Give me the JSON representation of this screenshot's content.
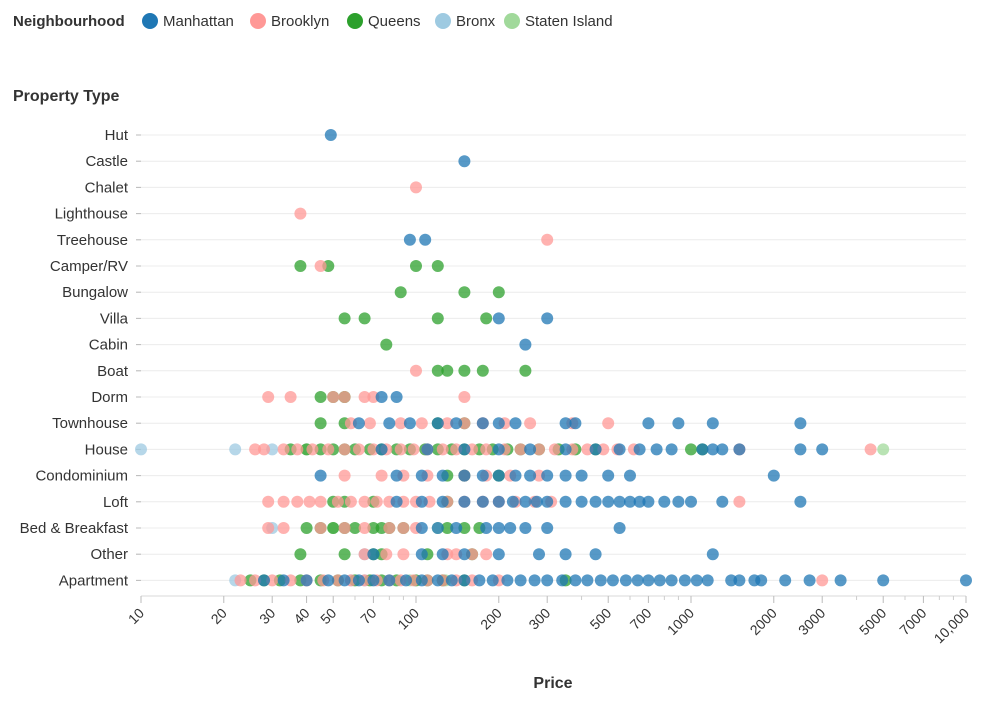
{
  "chart_data": {
    "type": "scatter",
    "x_scale": "log",
    "xlim": [
      10,
      10000
    ],
    "xlabel": "Price",
    "ylabel": "Property Type",
    "legend": {
      "title": "Neighbourhood",
      "placement": "top-left",
      "entries": [
        {
          "name": "Manhattan",
          "color": "#1f77b4"
        },
        {
          "name": "Brooklyn",
          "color": "#ff9896"
        },
        {
          "name": "Queens",
          "color": "#2ca02c"
        },
        {
          "name": "Bronx",
          "color": "#9ecae1"
        },
        {
          "name": "Staten Island",
          "color": "#a1d99b"
        }
      ]
    },
    "categories": [
      "Hut",
      "Castle",
      "Chalet",
      "Lighthouse",
      "Treehouse",
      "Camper/RV",
      "Bungalow",
      "Villa",
      "Cabin",
      "Boat",
      "Dorm",
      "Townhouse",
      "House",
      "Condominium",
      "Loft",
      "Bed & Breakfast",
      "Other",
      "Apartment"
    ],
    "x_ticks": [
      {
        "value": 10,
        "label": "10"
      },
      {
        "value": 20,
        "label": "20"
      },
      {
        "value": 30,
        "label": "30"
      },
      {
        "value": 40,
        "label": "40"
      },
      {
        "value": 50,
        "label": "50"
      },
      {
        "value": 70,
        "label": "70"
      },
      {
        "value": 100,
        "label": "100"
      },
      {
        "value": 200,
        "label": "200"
      },
      {
        "value": 300,
        "label": "300"
      },
      {
        "value": 500,
        "label": "500"
      },
      {
        "value": 700,
        "label": "700"
      },
      {
        "value": 1000,
        "label": "1000"
      },
      {
        "value": 2000,
        "label": "2000"
      },
      {
        "value": 3000,
        "label": "3000"
      },
      {
        "value": 5000,
        "label": "5000"
      },
      {
        "value": 7000,
        "label": "7000"
      },
      {
        "value": 10000,
        "label": "10,000"
      }
    ],
    "minor_ticks": [
      60,
      80,
      90,
      400,
      600,
      800,
      900,
      4000,
      6000,
      8000,
      9000
    ],
    "series": [
      {
        "name": "Manhattan",
        "points": {
          "Hut": [
            49
          ],
          "Castle": [
            150
          ],
          "Treehouse": [
            95,
            108
          ],
          "Villa": [
            200,
            300
          ],
          "Cabin": [
            250
          ],
          "Dorm": [
            75,
            85
          ],
          "Townhouse": [
            62,
            80,
            95,
            120,
            140,
            175,
            200,
            230,
            350,
            380,
            700,
            900,
            1200,
            2500
          ],
          "House": [
            75,
            110,
            150,
            200,
            260,
            350,
            450,
            550,
            650,
            750,
            850,
            1100,
            1200,
            1300,
            1500,
            2500,
            3000
          ],
          "Condominium": [
            45,
            85,
            105,
            125,
            150,
            175,
            200,
            230,
            260,
            300,
            350,
            400,
            500,
            600,
            2000
          ],
          "Loft": [
            85,
            105,
            125,
            150,
            175,
            200,
            225,
            250,
            275,
            300,
            350,
            400,
            450,
            500,
            550,
            600,
            650,
            700,
            800,
            900,
            1000,
            1300,
            2500
          ],
          "Bed & Breakfast": [
            105,
            120,
            140,
            180,
            200,
            220,
            250,
            300,
            550
          ],
          "Other": [
            70,
            105,
            125,
            150,
            200,
            280,
            350,
            450,
            1200
          ],
          "Apartment": [
            28,
            33,
            40,
            48,
            55,
            62,
            70,
            80,
            92,
            105,
            120,
            135,
            150,
            170,
            190,
            215,
            240,
            270,
            300,
            340,
            380,
            420,
            470,
            520,
            580,
            640,
            700,
            770,
            850,
            950,
            1050,
            1150,
            1400,
            1500,
            1700,
            1800,
            2200,
            2700,
            3500,
            5000,
            10000
          ]
        }
      },
      {
        "name": "Brooklyn",
        "points": {
          "Chalet": [
            100
          ],
          "Lighthouse": [
            38
          ],
          "Treehouse": [
            300
          ],
          "Camper/RV": [
            45
          ],
          "Boat": [
            100
          ],
          "Dorm": [
            29,
            35,
            50,
            55,
            65,
            70,
            150
          ],
          "Townhouse": [
            58,
            68,
            88,
            105,
            130,
            150,
            175,
            210,
            260,
            370,
            500
          ],
          "House": [
            26,
            28,
            33,
            37,
            42,
            48,
            55,
            62,
            70,
            78,
            88,
            98,
            110,
            125,
            140,
            160,
            180,
            210,
            240,
            280,
            320,
            370,
            420,
            480,
            540,
            620,
            1500,
            4500
          ],
          "Condominium": [
            55,
            75,
            90,
            110,
            150,
            180,
            220,
            280
          ],
          "Loft": [
            29,
            33,
            37,
            41,
            45,
            52,
            58,
            65,
            72,
            80,
            90,
            100,
            112,
            130,
            150,
            175,
            200,
            230,
            270,
            310,
            1500
          ],
          "Bed & Breakfast": [
            29,
            33,
            45,
            55,
            65,
            80,
            90,
            100
          ],
          "Other": [
            65,
            78,
            90,
            130,
            140,
            160,
            180
          ],
          "Apartment": [
            23,
            26,
            30,
            35,
            40,
            46,
            52,
            58,
            65,
            72,
            80,
            88,
            98,
            110,
            125,
            140,
            160,
            200,
            3000
          ]
        }
      },
      {
        "name": "Queens",
        "points": {
          "Camper/RV": [
            38,
            48,
            100,
            120
          ],
          "Bungalow": [
            88,
            150,
            200
          ],
          "Villa": [
            55,
            65,
            120,
            180
          ],
          "Cabin": [
            78
          ],
          "Boat": [
            120,
            130,
            150,
            175,
            250
          ],
          "Dorm": [
            45,
            50,
            55
          ],
          "Townhouse": [
            45,
            55,
            120,
            150
          ],
          "House": [
            35,
            40,
            45,
            50,
            55,
            60,
            68,
            75,
            85,
            95,
            108,
            120,
            135,
            150,
            170,
            190,
            215,
            240,
            280,
            330,
            380,
            450,
            1000,
            1100
          ],
          "Condominium": [
            130,
            150,
            200
          ],
          "Loft": [
            50,
            55,
            70,
            130
          ],
          "Bed & Breakfast": [
            40,
            45,
            50,
            55,
            60,
            70,
            75,
            80,
            90,
            130,
            150,
            170
          ],
          "Other": [
            38,
            55,
            70,
            75,
            110,
            160
          ],
          "Apartment": [
            25,
            28,
            32,
            38,
            45,
            52,
            60,
            68,
            75,
            85,
            100,
            110,
            125,
            150,
            350
          ]
        }
      },
      {
        "name": "Bronx",
        "points": {
          "House": [
            10,
            22,
            30
          ],
          "Bed & Breakfast": [
            30
          ],
          "Other": [
            65
          ],
          "Apartment": [
            22,
            58,
            65
          ]
        }
      },
      {
        "name": "Staten Island",
        "points": {
          "Dorm": [
            55
          ],
          "House": [
            40,
            5000
          ],
          "Bed & Breakfast": [
            50,
            120
          ],
          "Apartment": [
            95,
            128
          ]
        }
      }
    ]
  }
}
